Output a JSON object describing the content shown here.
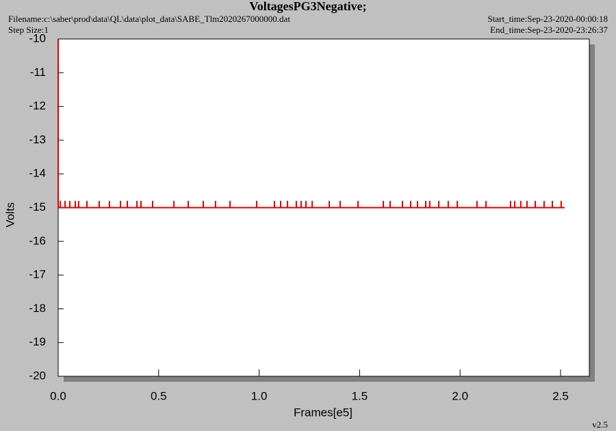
{
  "info": {
    "filename": "Filename:c:\\saber\\prod\\data\\QL\\data\\plot_data\\SABE_Tlm2020267000000.dat",
    "step_size": "Step Size:1",
    "start_time": "Start_time:Sep-23-2020-00:00:18",
    "end_time": "End_time:Sep-23-2020-23:26:37",
    "version": "v2.5"
  },
  "chart_data": {
    "type": "line",
    "title": "VoltagesPG3Negative;",
    "x_label": "Frames[e5]",
    "y_label": "Volts",
    "xlim": [
      0,
      2.643
    ],
    "ylim": [
      -20,
      -10
    ],
    "xticks": [
      {
        "value": 0,
        "label": "0.0"
      },
      0.5,
      {
        "value": 1,
        "label": "1.0"
      },
      1.5,
      {
        "value": 2,
        "label": "2.0"
      },
      2.5
    ],
    "yticks": [
      -10,
      -11,
      -12,
      -13,
      -14,
      -15,
      -16,
      -17,
      -18,
      -19,
      -20
    ],
    "x": [
      0,
      0,
      0.01,
      0.01,
      0.01,
      0.034,
      0.034,
      0.034,
      0.058,
      0.058,
      0.058,
      0.085,
      0.085,
      0.085,
      0.102,
      0.102,
      0.102,
      0.143,
      0.143,
      0.143,
      0.204,
      0.204,
      0.204,
      0.255,
      0.255,
      0.255,
      0.31,
      0.31,
      0.31,
      0.344,
      0.344,
      0.344,
      0.392,
      0.392,
      0.392,
      0.412,
      0.412,
      0.412,
      0.47,
      0.47,
      0.47,
      0.576,
      0.576,
      0.576,
      0.647,
      0.647,
      0.647,
      0.722,
      0.722,
      0.722,
      0.783,
      0.783,
      0.783,
      0.855,
      0.855,
      0.855,
      0.988,
      0.988,
      0.988,
      1.076,
      1.076,
      1.076,
      1.107,
      1.107,
      1.107,
      1.141,
      1.141,
      1.141,
      1.185,
      1.185,
      1.185,
      1.209,
      1.209,
      1.209,
      1.233,
      1.233,
      1.233,
      1.264,
      1.264,
      1.264,
      1.349,
      1.349,
      1.349,
      1.403,
      1.403,
      1.403,
      1.492,
      1.492,
      1.492,
      1.618,
      1.618,
      1.618,
      1.652,
      1.652,
      1.652,
      1.713,
      1.713,
      1.713,
      1.754,
      1.754,
      1.754,
      1.788,
      1.788,
      1.788,
      1.829,
      1.829,
      1.829,
      1.849,
      1.849,
      1.849,
      1.894,
      1.894,
      1.894,
      1.941,
      1.941,
      1.941,
      1.986,
      1.986,
      1.986,
      2.084,
      2.084,
      2.084,
      2.129,
      2.129,
      2.129,
      2.251,
      2.251,
      2.251,
      2.272,
      2.272,
      2.272,
      2.302,
      2.302,
      2.302,
      2.333,
      2.333,
      2.333,
      2.374,
      2.374,
      2.374,
      2.418,
      2.418,
      2.418,
      2.459,
      2.459,
      2.459,
      2.503,
      2.503,
      2.503,
      2.52
    ],
    "series": [
      {
        "color": "#e00000",
        "values": [
          -10,
          -15,
          -15,
          -14.8,
          -15,
          -15,
          -14.8,
          -15,
          -15,
          -14.8,
          -15,
          -15,
          -14.8,
          -15,
          -15,
          -14.8,
          -15,
          -15,
          -14.8,
          -15,
          -15,
          -14.8,
          -15,
          -15,
          -14.8,
          -15,
          -15,
          -14.8,
          -15,
          -15,
          -14.8,
          -15,
          -15,
          -14.8,
          -15,
          -15,
          -14.8,
          -15,
          -15,
          -14.8,
          -15,
          -15,
          -14.8,
          -15,
          -15,
          -14.8,
          -15,
          -15,
          -14.8,
          -15,
          -15,
          -14.8,
          -15,
          -15,
          -14.8,
          -15,
          -15,
          -14.8,
          -15,
          -15,
          -14.8,
          -15,
          -15,
          -14.8,
          -15,
          -15,
          -14.8,
          -15,
          -15,
          -14.8,
          -15,
          -15,
          -14.8,
          -15,
          -15,
          -14.8,
          -15,
          -15,
          -14.8,
          -15,
          -15,
          -14.8,
          -15,
          -15,
          -14.8,
          -15,
          -15,
          -14.8,
          -15,
          -15,
          -14.8,
          -15,
          -15,
          -14.8,
          -15,
          -15,
          -14.8,
          -15,
          -15,
          -14.8,
          -15,
          -15,
          -14.8,
          -15,
          -15,
          -14.8,
          -15,
          -15,
          -14.8,
          -15,
          -15,
          -14.8,
          -15,
          -15,
          -14.8,
          -15,
          -15,
          -14.8,
          -15,
          -15,
          -14.8,
          -15,
          -15,
          -14.8,
          -15,
          -15,
          -14.8,
          -15,
          -15,
          -14.8,
          -15,
          -15,
          -14.8,
          -15,
          -15,
          -14.8,
          -15,
          -15,
          -14.8,
          -15,
          -15,
          -14.8,
          -15,
          -15,
          -14.8,
          -15,
          -15,
          -14.8,
          -15,
          -15
        ]
      }
    ]
  }
}
